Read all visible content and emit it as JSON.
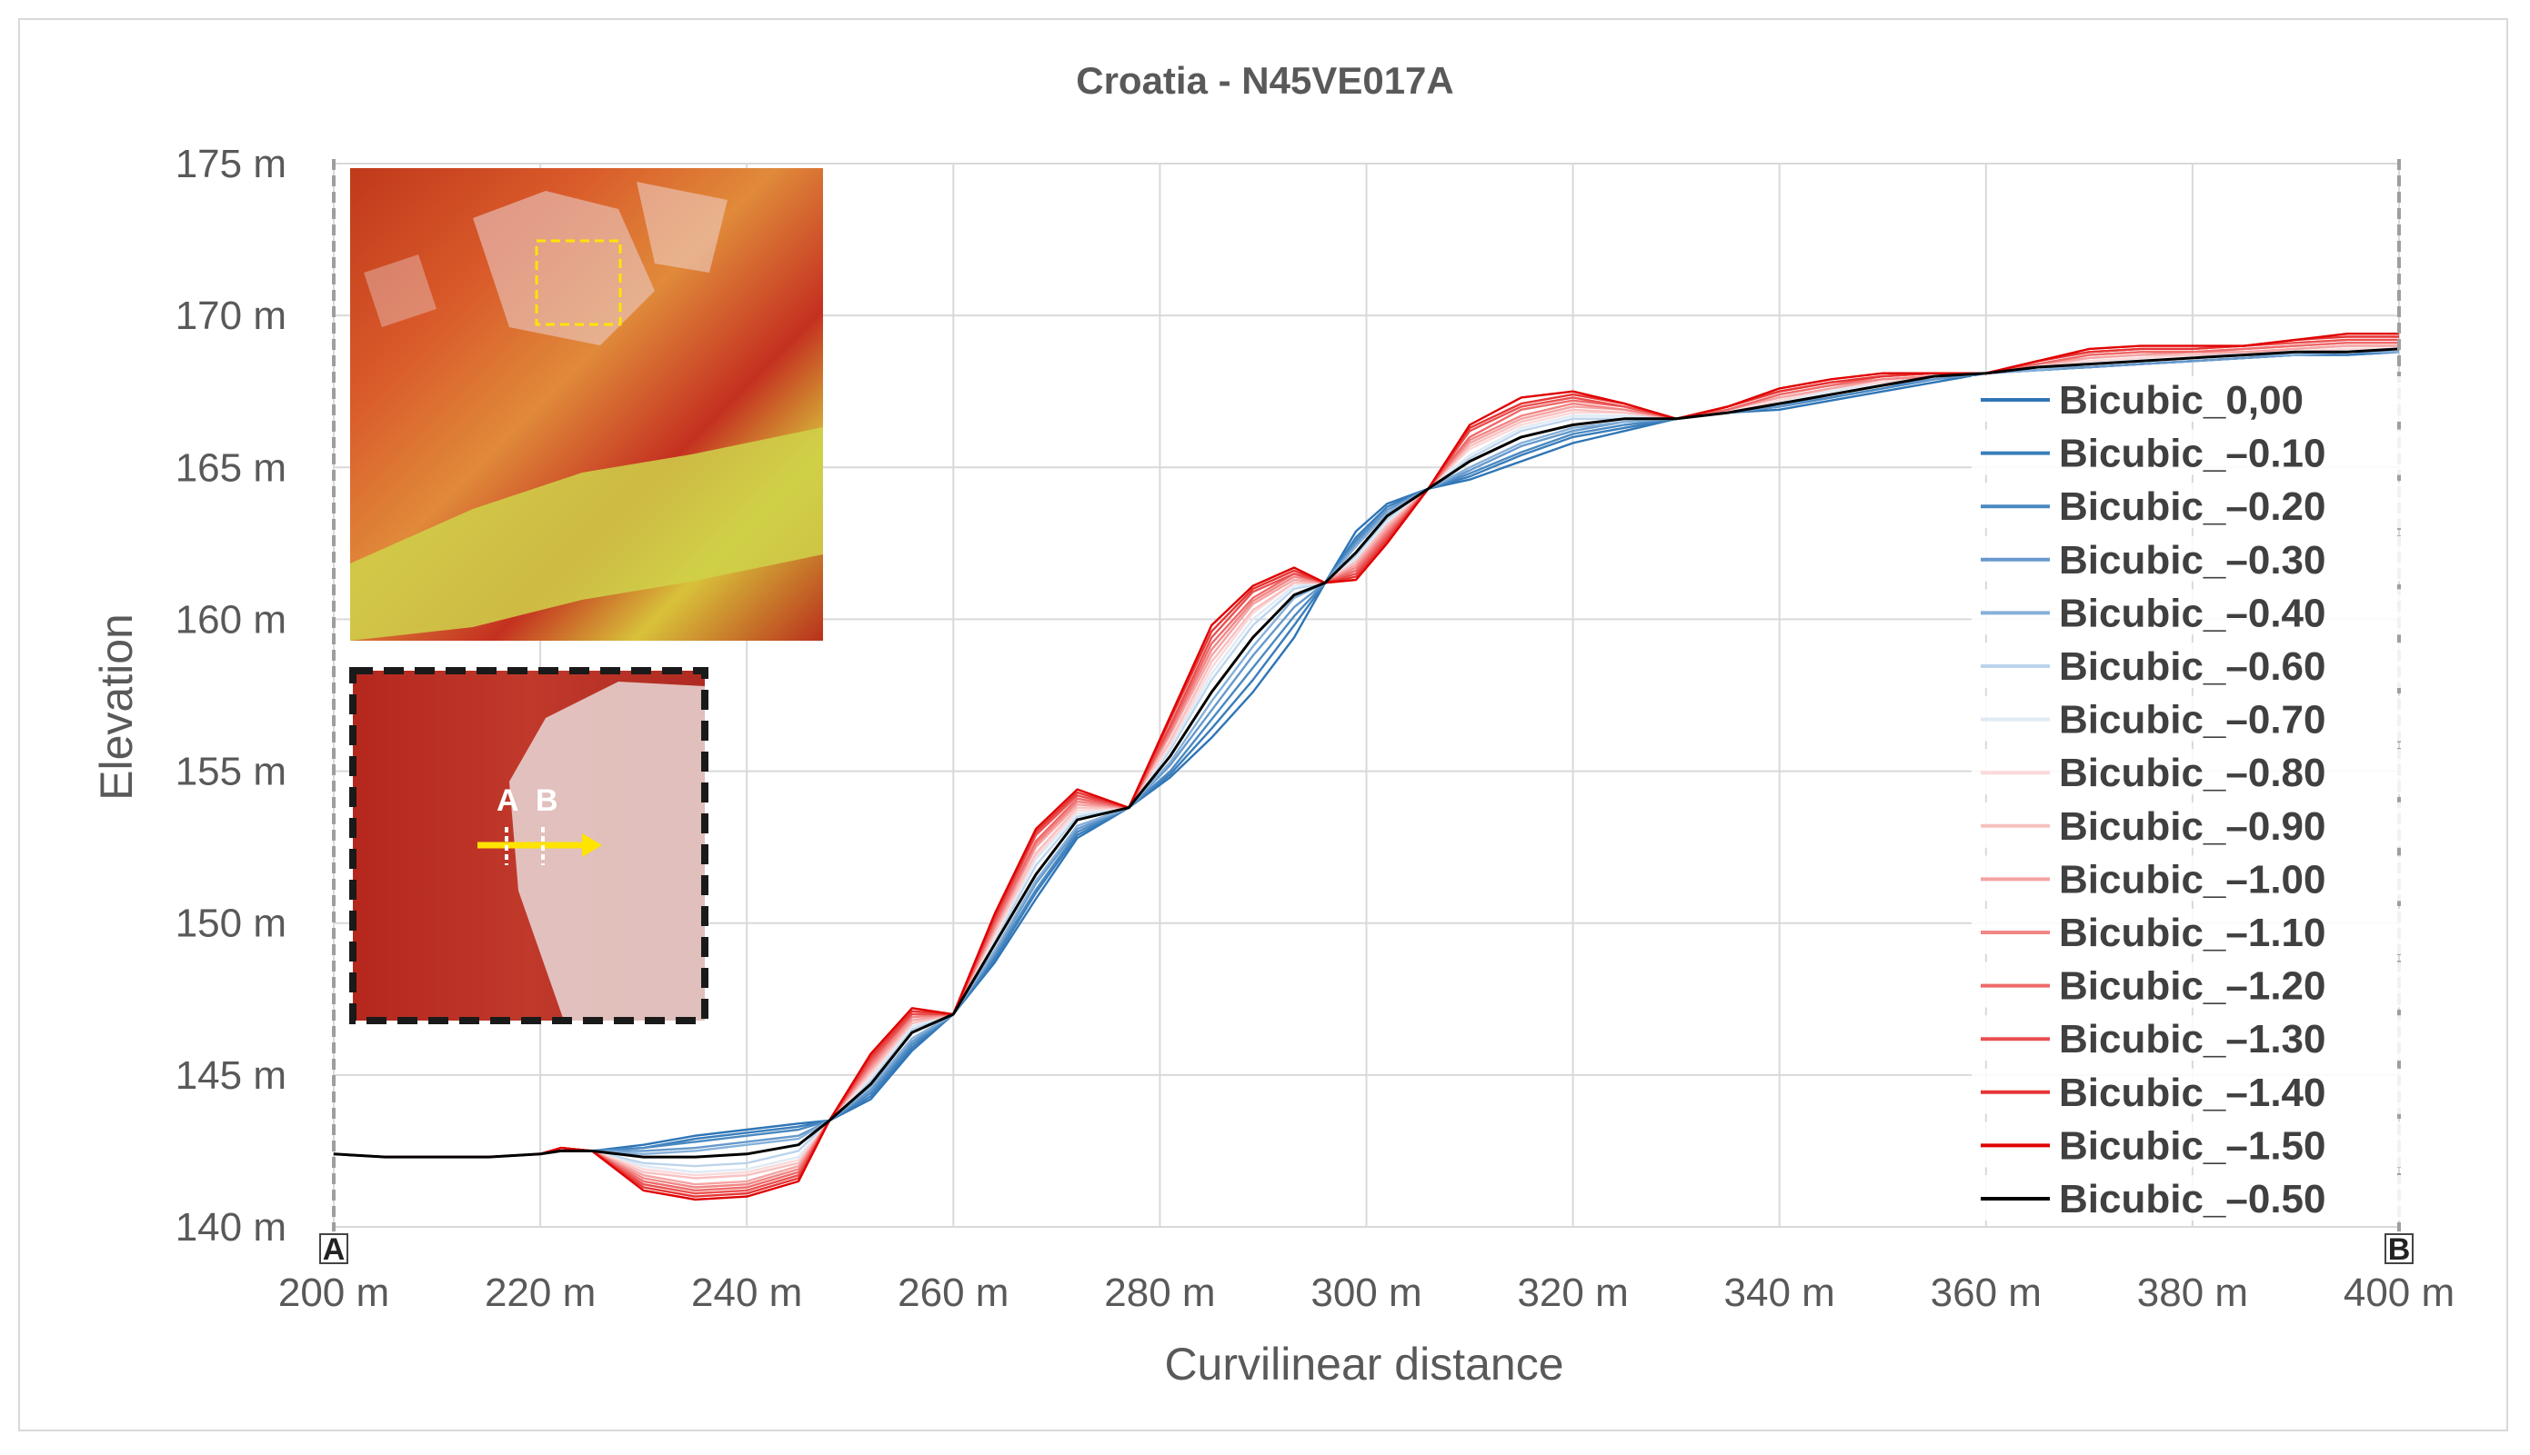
{
  "chart_data": {
    "type": "line",
    "title": "Croatia - N45VE017A",
    "xlabel": "Curvilinear distance",
    "ylabel": "Elevation",
    "xlim": [
      200,
      400
    ],
    "ylim": [
      140,
      175
    ],
    "x_ticks": [
      "200 m",
      "220 m",
      "240 m",
      "260 m",
      "280 m",
      "300 m",
      "320 m",
      "340 m",
      "360 m",
      "380 m",
      "400 m"
    ],
    "y_ticks": [
      "140 m",
      "145 m",
      "150 m",
      "155 m",
      "160 m",
      "165 m",
      "170 m",
      "175 m"
    ],
    "x_tick_values": [
      200,
      220,
      240,
      260,
      280,
      300,
      320,
      340,
      360,
      380,
      400
    ],
    "y_tick_values": [
      140,
      145,
      150,
      155,
      160,
      165,
      170,
      175
    ],
    "grid": true,
    "legend_position": "right",
    "profile_endpoints": [
      "A",
      "B"
    ],
    "inset_markers": [
      "A",
      "B"
    ],
    "x": [
      200,
      205,
      210,
      215,
      220,
      222,
      225,
      230,
      235,
      240,
      245,
      248,
      252,
      256,
      260,
      264,
      268,
      272,
      277,
      281,
      285,
      289,
      293,
      296,
      299,
      302,
      306,
      310,
      315,
      320,
      325,
      330,
      335,
      340,
      345,
      350,
      355,
      360,
      365,
      370,
      375,
      380,
      385,
      390,
      395,
      400
    ],
    "series": [
      {
        "name": "Bicubic_0,00",
        "color": "#2e75b6",
        "values": [
          142.4,
          142.3,
          142.3,
          142.3,
          142.4,
          142.5,
          142.5,
          142.7,
          143.0,
          143.2,
          143.4,
          143.5,
          144.2,
          145.8,
          147.0,
          148.7,
          150.8,
          152.8,
          153.8,
          154.8,
          156.1,
          157.6,
          159.4,
          161.2,
          162.9,
          163.8,
          164.3,
          164.6,
          165.2,
          165.8,
          166.2,
          166.6,
          166.8,
          166.9,
          167.2,
          167.5,
          167.8,
          168.1,
          168.2,
          168.3,
          168.4,
          168.5,
          168.6,
          168.7,
          168.7,
          168.8
        ]
      },
      {
        "name": "Bicubic_–0.10",
        "color": "#3a7dbb",
        "values": [
          142.4,
          142.3,
          142.3,
          142.3,
          142.4,
          142.5,
          142.5,
          142.6,
          142.9,
          143.1,
          143.3,
          143.5,
          144.3,
          145.9,
          147.0,
          148.8,
          151.0,
          152.9,
          153.8,
          154.9,
          156.4,
          158.0,
          159.8,
          161.2,
          162.7,
          163.7,
          164.3,
          164.7,
          165.4,
          166.0,
          166.3,
          166.6,
          166.8,
          167.0,
          167.3,
          167.6,
          167.9,
          168.1,
          168.2,
          168.3,
          168.4,
          168.5,
          168.6,
          168.7,
          168.7,
          168.8
        ]
      },
      {
        "name": "Bicubic_–0.20",
        "color": "#4a89c1",
        "values": [
          142.4,
          142.3,
          142.3,
          142.3,
          142.4,
          142.5,
          142.5,
          142.6,
          142.8,
          143.0,
          143.2,
          143.5,
          144.4,
          146.0,
          147.0,
          148.9,
          151.1,
          153.0,
          153.8,
          155.0,
          156.7,
          158.4,
          160.1,
          161.2,
          162.6,
          163.6,
          164.3,
          164.8,
          165.5,
          166.1,
          166.4,
          166.6,
          166.8,
          167.0,
          167.3,
          167.6,
          167.9,
          168.1,
          168.2,
          168.3,
          168.4,
          168.5,
          168.6,
          168.7,
          168.8,
          168.8
        ]
      },
      {
        "name": "Bicubic_–0.30",
        "color": "#6699cc",
        "values": [
          142.4,
          142.3,
          142.3,
          142.3,
          142.4,
          142.5,
          142.5,
          142.5,
          142.6,
          142.8,
          143.0,
          143.5,
          144.5,
          146.1,
          147.0,
          149.0,
          151.3,
          153.1,
          153.8,
          155.2,
          157.0,
          158.8,
          160.4,
          161.2,
          162.5,
          163.6,
          164.3,
          164.9,
          165.7,
          166.2,
          166.5,
          166.6,
          166.8,
          167.0,
          167.4,
          167.7,
          167.9,
          168.1,
          168.2,
          168.3,
          168.4,
          168.5,
          168.6,
          168.7,
          168.8,
          168.8
        ]
      },
      {
        "name": "Bicubic_–0.40",
        "color": "#85b0d9",
        "values": [
          142.4,
          142.3,
          142.3,
          142.3,
          142.4,
          142.5,
          142.5,
          142.4,
          142.5,
          142.7,
          142.9,
          143.5,
          144.6,
          146.2,
          147.0,
          149.1,
          151.4,
          153.2,
          153.8,
          155.3,
          157.3,
          159.1,
          160.7,
          161.2,
          162.4,
          163.5,
          164.3,
          165.0,
          165.8,
          166.3,
          166.5,
          166.6,
          166.8,
          167.1,
          167.4,
          167.7,
          168.0,
          168.1,
          168.2,
          168.4,
          168.5,
          168.6,
          168.7,
          168.7,
          168.8,
          168.8
        ]
      },
      {
        "name": "Bicubic_–0.60",
        "color": "#bcd4ec",
        "values": [
          142.4,
          142.3,
          142.3,
          142.3,
          142.4,
          142.5,
          142.5,
          142.1,
          142.0,
          142.1,
          142.5,
          143.5,
          144.8,
          146.5,
          147.0,
          149.4,
          151.9,
          153.5,
          153.8,
          155.7,
          158.0,
          159.8,
          161.0,
          161.2,
          162.1,
          163.3,
          164.3,
          165.3,
          166.2,
          166.6,
          166.6,
          166.6,
          166.8,
          167.2,
          167.5,
          167.8,
          168.0,
          168.1,
          168.3,
          168.5,
          168.6,
          168.7,
          168.7,
          168.8,
          168.9,
          168.9
        ]
      },
      {
        "name": "Bicubic_–0.70",
        "color": "#dfeaf5",
        "values": [
          142.4,
          142.3,
          142.3,
          142.3,
          142.4,
          142.5,
          142.5,
          142.0,
          141.8,
          141.9,
          142.3,
          143.5,
          144.9,
          146.6,
          147.0,
          149.5,
          152.1,
          153.6,
          153.8,
          155.8,
          158.2,
          160.0,
          161.1,
          161.2,
          162.0,
          163.2,
          164.3,
          165.4,
          166.3,
          166.7,
          166.7,
          166.6,
          166.8,
          167.2,
          167.5,
          167.8,
          168.0,
          168.1,
          168.3,
          168.5,
          168.6,
          168.7,
          168.8,
          168.8,
          168.9,
          168.9
        ]
      },
      {
        "name": "Bicubic_–0.80",
        "color": "#fcd9d9",
        "values": [
          142.4,
          142.3,
          142.3,
          142.3,
          142.4,
          142.5,
          142.5,
          141.9,
          141.7,
          141.8,
          142.2,
          143.5,
          145.0,
          146.7,
          147.0,
          149.6,
          152.2,
          153.7,
          153.8,
          155.9,
          158.4,
          160.2,
          161.2,
          161.2,
          161.9,
          163.1,
          164.3,
          165.6,
          166.4,
          166.8,
          166.8,
          166.6,
          166.8,
          167.2,
          167.6,
          167.8,
          168.0,
          168.1,
          168.3,
          168.5,
          168.6,
          168.7,
          168.8,
          168.8,
          168.9,
          168.9
        ]
      },
      {
        "name": "Bicubic_–0.90",
        "color": "#f9c0c0",
        "values": [
          142.4,
          142.3,
          142.3,
          142.3,
          142.4,
          142.6,
          142.5,
          141.8,
          141.6,
          141.7,
          142.1,
          143.5,
          145.1,
          146.7,
          147.0,
          149.7,
          152.3,
          153.8,
          153.8,
          156.0,
          158.6,
          160.3,
          161.2,
          161.2,
          161.9,
          163.1,
          164.3,
          165.7,
          166.5,
          166.9,
          166.8,
          166.6,
          166.9,
          167.3,
          167.6,
          167.9,
          168.0,
          168.1,
          168.3,
          168.6,
          168.7,
          168.7,
          168.8,
          168.9,
          169.0,
          169.0
        ]
      },
      {
        "name": "Bicubic_–1.00",
        "color": "#f5a3a3",
        "values": [
          142.4,
          142.3,
          142.3,
          142.3,
          142.4,
          142.6,
          142.5,
          141.7,
          141.4,
          141.5,
          142.0,
          143.5,
          145.2,
          146.8,
          147.0,
          149.8,
          152.5,
          153.9,
          153.8,
          156.2,
          158.8,
          160.5,
          161.3,
          161.2,
          161.8,
          163.0,
          164.3,
          165.8,
          166.6,
          167.0,
          166.9,
          166.6,
          166.9,
          167.3,
          167.6,
          167.9,
          168.0,
          168.1,
          168.4,
          168.6,
          168.7,
          168.8,
          168.8,
          168.9,
          169.0,
          169.0
        ]
      },
      {
        "name": "Bicubic_–1.10",
        "color": "#f28585",
        "values": [
          142.4,
          142.3,
          142.3,
          142.3,
          142.4,
          142.6,
          142.5,
          141.6,
          141.3,
          141.4,
          141.9,
          143.5,
          145.3,
          146.9,
          147.0,
          149.9,
          152.6,
          154.0,
          153.8,
          156.3,
          159.0,
          160.6,
          161.4,
          161.2,
          161.7,
          162.9,
          164.3,
          165.9,
          166.7,
          167.1,
          166.9,
          166.6,
          166.9,
          167.4,
          167.7,
          167.9,
          168.0,
          168.1,
          168.4,
          168.7,
          168.8,
          168.8,
          168.9,
          169.0,
          169.1,
          169.1
        ]
      },
      {
        "name": "Bicubic_–1.20",
        "color": "#ee6a6a",
        "values": [
          142.4,
          142.3,
          142.3,
          142.3,
          142.4,
          142.6,
          142.5,
          141.5,
          141.2,
          141.3,
          141.8,
          143.5,
          145.4,
          147.0,
          147.0,
          150.0,
          152.7,
          154.1,
          153.8,
          156.4,
          159.2,
          160.7,
          161.5,
          161.2,
          161.6,
          162.8,
          164.3,
          166.0,
          166.9,
          167.2,
          167.0,
          166.6,
          166.9,
          167.4,
          167.7,
          168.0,
          168.1,
          168.1,
          168.4,
          168.7,
          168.8,
          168.8,
          168.9,
          169.0,
          169.1,
          169.1
        ]
      },
      {
        "name": "Bicubic_–1.30",
        "color": "#ea4f4f",
        "values": [
          142.4,
          142.3,
          142.3,
          142.3,
          142.4,
          142.6,
          142.5,
          141.4,
          141.1,
          141.2,
          141.7,
          143.5,
          145.5,
          147.0,
          147.0,
          150.1,
          152.9,
          154.2,
          153.8,
          156.5,
          159.4,
          160.9,
          161.5,
          161.2,
          161.5,
          162.7,
          164.3,
          166.2,
          167.0,
          167.3,
          167.0,
          166.6,
          167.0,
          167.5,
          167.8,
          168.0,
          168.1,
          168.1,
          168.5,
          168.8,
          168.9,
          168.9,
          169.0,
          169.1,
          169.2,
          169.2
        ]
      },
      {
        "name": "Bicubic_–1.40",
        "color": "#e53535",
        "values": [
          142.4,
          142.3,
          142.3,
          142.3,
          142.4,
          142.6,
          142.5,
          141.3,
          141.0,
          141.1,
          141.6,
          143.5,
          145.6,
          147.1,
          147.0,
          150.2,
          153.0,
          154.3,
          153.8,
          156.7,
          159.6,
          161.0,
          161.6,
          161.2,
          161.4,
          162.6,
          164.3,
          166.3,
          167.1,
          167.4,
          167.1,
          166.6,
          167.0,
          167.5,
          167.8,
          168.0,
          168.1,
          168.1,
          168.5,
          168.8,
          168.9,
          168.9,
          169.0,
          169.2,
          169.3,
          169.3
        ]
      },
      {
        "name": "Bicubic_–1.50",
        "color": "#e00000",
        "values": [
          142.4,
          142.3,
          142.3,
          142.3,
          142.4,
          142.6,
          142.5,
          141.2,
          140.9,
          141.0,
          141.5,
          143.5,
          145.7,
          147.2,
          147.0,
          150.3,
          153.1,
          154.4,
          153.8,
          156.8,
          159.8,
          161.1,
          161.7,
          161.2,
          161.3,
          162.5,
          164.3,
          166.4,
          167.3,
          167.5,
          167.1,
          166.6,
          167.0,
          167.6,
          167.9,
          168.1,
          168.1,
          168.1,
          168.5,
          168.9,
          169.0,
          169.0,
          169.0,
          169.2,
          169.4,
          169.4
        ]
      },
      {
        "name": "Bicubic_–0.50",
        "color": "#000000",
        "values": [
          142.4,
          142.3,
          142.3,
          142.3,
          142.4,
          142.5,
          142.5,
          142.3,
          142.3,
          142.4,
          142.7,
          143.5,
          144.7,
          146.4,
          147.0,
          149.3,
          151.6,
          153.4,
          153.8,
          155.5,
          157.6,
          159.4,
          160.8,
          161.2,
          162.2,
          163.4,
          164.3,
          165.2,
          166.0,
          166.4,
          166.6,
          166.6,
          166.8,
          167.1,
          167.4,
          167.7,
          168.0,
          168.1,
          168.3,
          168.4,
          168.5,
          168.6,
          168.7,
          168.8,
          168.8,
          168.9
        ]
      }
    ]
  }
}
